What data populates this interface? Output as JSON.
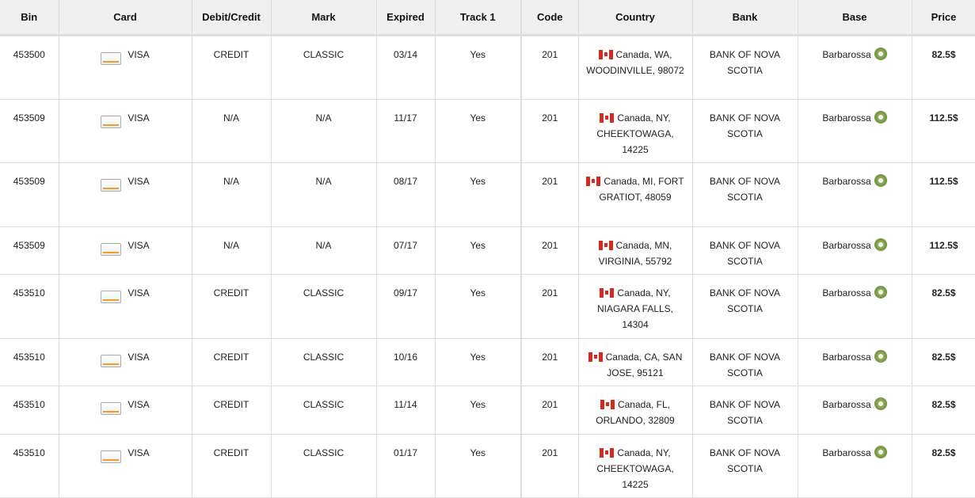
{
  "headers": [
    "Bin",
    "Card",
    "Debit/Credit",
    "Mark",
    "Expired",
    "Track 1",
    "Code",
    "Country",
    "Bank",
    "Base",
    "Price"
  ],
  "rows": [
    {
      "bin": "453500",
      "card": "VISA",
      "type": "CREDIT",
      "mark": "CLASSIC",
      "expired": "03/14",
      "track1": "Yes",
      "code": "201",
      "country": "Canada, WA, WOODINVILLE, 98072",
      "bank": "BANK OF NOVA SCOTIA",
      "base": "Barbarossa",
      "price": "82.5$"
    },
    {
      "bin": "453509",
      "card": "VISA",
      "type": "N/A",
      "mark": "N/A",
      "expired": "11/17",
      "track1": "Yes",
      "code": "201",
      "country": "Canada, NY, CHEEKTOWAGA, 14225",
      "bank": "BANK OF NOVA SCOTIA",
      "base": "Barbarossa",
      "price": "112.5$"
    },
    {
      "bin": "453509",
      "card": "VISA",
      "type": "N/A",
      "mark": "N/A",
      "expired": "08/17",
      "track1": "Yes",
      "code": "201",
      "country": "Canada, MI, FORT GRATIOT, 48059",
      "bank": "BANK OF NOVA SCOTIA",
      "base": "Barbarossa",
      "price": "112.5$"
    },
    {
      "bin": "453509",
      "card": "VISA",
      "type": "N/A",
      "mark": "N/A",
      "expired": "07/17",
      "track1": "Yes",
      "code": "201",
      "country": "Canada, MN, VIRGINIA, 55792",
      "bank": "BANK OF NOVA SCOTIA",
      "base": "Barbarossa",
      "price": "112.5$"
    },
    {
      "bin": "453510",
      "card": "VISA",
      "type": "CREDIT",
      "mark": "CLASSIC",
      "expired": "09/17",
      "track1": "Yes",
      "code": "201",
      "country": "Canada, NY, NIAGARA FALLS, 14304",
      "bank": "BANK OF NOVA SCOTIA",
      "base": "Barbarossa",
      "price": "82.5$"
    },
    {
      "bin": "453510",
      "card": "VISA",
      "type": "CREDIT",
      "mark": "CLASSIC",
      "expired": "10/16",
      "track1": "Yes",
      "code": "201",
      "country": "Canada, CA, SAN JOSE, 95121",
      "bank": "BANK OF NOVA SCOTIA",
      "base": "Barbarossa",
      "price": "82.5$"
    },
    {
      "bin": "453510",
      "card": "VISA",
      "type": "CREDIT",
      "mark": "CLASSIC",
      "expired": "11/14",
      "track1": "Yes",
      "code": "201",
      "country": "Canada, FL, ORLANDO, 32809",
      "bank": "BANK OF NOVA SCOTIA",
      "base": "Barbarossa",
      "price": "82.5$"
    },
    {
      "bin": "453510",
      "card": "VISA",
      "type": "CREDIT",
      "mark": "CLASSIC",
      "expired": "01/17",
      "track1": "Yes",
      "code": "201",
      "country": "Canada, NY, CHEEKTOWAGA, 14225",
      "bank": "BANK OF NOVA SCOTIA",
      "base": "Barbarossa",
      "price": "82.5$"
    }
  ],
  "icons": {
    "card": "visa-card-icon",
    "country": "canada-flag-icon",
    "base": "clock-icon"
  }
}
